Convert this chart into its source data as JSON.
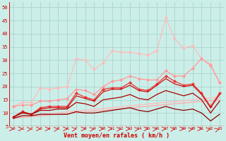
{
  "xlabel": "Vent moyen/en rafales ( km/h )",
  "background_color": "#cceee8",
  "grid_color": "#aad4ce",
  "xlim": [
    -0.5,
    23.5
  ],
  "ylim": [
    5,
    52
  ],
  "yticks": [
    5,
    10,
    15,
    20,
    25,
    30,
    35,
    40,
    45,
    50
  ],
  "xticks": [
    0,
    1,
    2,
    3,
    4,
    5,
    6,
    7,
    8,
    9,
    10,
    11,
    12,
    13,
    14,
    15,
    16,
    17,
    18,
    19,
    20,
    21,
    22,
    23
  ],
  "series": [
    {
      "color": "#ffbbbb",
      "linewidth": 0.9,
      "marker": null,
      "data_x": [
        0,
        23
      ],
      "data_y": [
        8.5,
        16.0
      ]
    },
    {
      "color": "#ffaaaa",
      "linewidth": 0.9,
      "marker": null,
      "data_x": [
        0,
        23
      ],
      "data_y": [
        8.0,
        15.0
      ]
    },
    {
      "color": "#ffbbbb",
      "linewidth": 0.9,
      "marker": "D",
      "markersize": 2.0,
      "data_x": [
        0,
        1,
        2,
        3,
        4,
        5,
        6,
        7,
        8,
        9,
        10,
        11,
        12,
        13,
        14,
        15,
        16,
        17,
        18,
        19,
        20,
        21,
        22,
        23
      ],
      "data_y": [
        12.5,
        14.0,
        14.0,
        19.5,
        19.0,
        19.5,
        20.0,
        30.5,
        30.0,
        26.5,
        29.0,
        33.5,
        33.0,
        33.0,
        32.5,
        32.0,
        33.5,
        46.0,
        38.0,
        34.5,
        35.5,
        30.5,
        28.5,
        21.5
      ]
    },
    {
      "color": "#ff9999",
      "linewidth": 0.9,
      "marker": "D",
      "markersize": 2.0,
      "data_x": [
        0,
        1,
        2,
        3,
        4,
        5,
        6,
        7,
        8,
        9,
        10,
        11,
        12,
        13,
        14,
        15,
        16,
        17,
        18,
        19,
        20,
        21,
        22,
        23
      ],
      "data_y": [
        12.5,
        13.0,
        13.0,
        14.5,
        14.5,
        15.0,
        15.5,
        19.0,
        18.5,
        17.0,
        20.0,
        22.0,
        22.5,
        24.0,
        23.0,
        22.5,
        22.5,
        26.0,
        24.0,
        24.0,
        27.0,
        30.5,
        28.0,
        21.5
      ]
    },
    {
      "color": "#ee3333",
      "linewidth": 0.9,
      "marker": "D",
      "markersize": 2.0,
      "data_x": [
        0,
        1,
        2,
        3,
        4,
        5,
        6,
        7,
        8,
        9,
        10,
        11,
        12,
        13,
        14,
        15,
        16,
        17,
        18,
        19,
        20,
        21,
        22,
        23
      ],
      "data_y": [
        8.5,
        10.5,
        9.5,
        12.0,
        12.5,
        12.5,
        12.5,
        17.5,
        16.0,
        15.0,
        19.0,
        19.5,
        19.5,
        21.5,
        19.0,
        18.5,
        21.0,
        24.0,
        22.0,
        20.5,
        21.0,
        17.5,
        12.5,
        17.5
      ]
    },
    {
      "color": "#cc1111",
      "linewidth": 0.9,
      "marker": null,
      "data_x": [
        0,
        1,
        2,
        3,
        4,
        5,
        6,
        7,
        8,
        9,
        10,
        11,
        12,
        13,
        14,
        15,
        16,
        17,
        18,
        19,
        20,
        21,
        22,
        23
      ],
      "data_y": [
        8.5,
        10.5,
        9.5,
        11.5,
        12.0,
        12.0,
        12.0,
        16.5,
        15.5,
        14.5,
        18.0,
        19.0,
        19.0,
        20.5,
        18.5,
        18.0,
        20.5,
        23.0,
        21.0,
        20.0,
        20.5,
        17.0,
        12.0,
        17.0
      ]
    },
    {
      "color": "#aa0000",
      "linewidth": 0.9,
      "marker": null,
      "data_x": [
        0,
        1,
        2,
        3,
        4,
        5,
        6,
        7,
        8,
        9,
        10,
        11,
        12,
        13,
        14,
        15,
        16,
        17,
        18,
        19,
        20,
        21,
        22,
        23
      ],
      "data_y": [
        8.5,
        10.0,
        9.5,
        11.0,
        11.0,
        11.5,
        11.5,
        14.0,
        13.5,
        12.5,
        15.0,
        15.5,
        16.0,
        17.0,
        15.5,
        15.0,
        17.0,
        18.5,
        17.5,
        16.5,
        17.5,
        15.0,
        10.0,
        14.5
      ]
    },
    {
      "color": "#880000",
      "linewidth": 0.9,
      "marker": null,
      "data_x": [
        0,
        1,
        2,
        3,
        4,
        5,
        6,
        7,
        8,
        9,
        10,
        11,
        12,
        13,
        14,
        15,
        16,
        17,
        18,
        19,
        20,
        21,
        22,
        23
      ],
      "data_y": [
        8.0,
        9.0,
        9.0,
        9.5,
        9.5,
        9.5,
        9.5,
        10.5,
        10.0,
        10.0,
        10.5,
        11.0,
        11.5,
        12.0,
        11.0,
        10.5,
        11.5,
        12.5,
        11.5,
        11.0,
        11.5,
        10.0,
        7.0,
        9.5
      ]
    }
  ],
  "arrow_color": "#dd2222",
  "arrow_angles": [
    0,
    0,
    20,
    0,
    0,
    20,
    0,
    20,
    0,
    20,
    0,
    0,
    20,
    0,
    20,
    0,
    20,
    0,
    20,
    0,
    30,
    0,
    30,
    45
  ],
  "border_color": "#cc2222"
}
